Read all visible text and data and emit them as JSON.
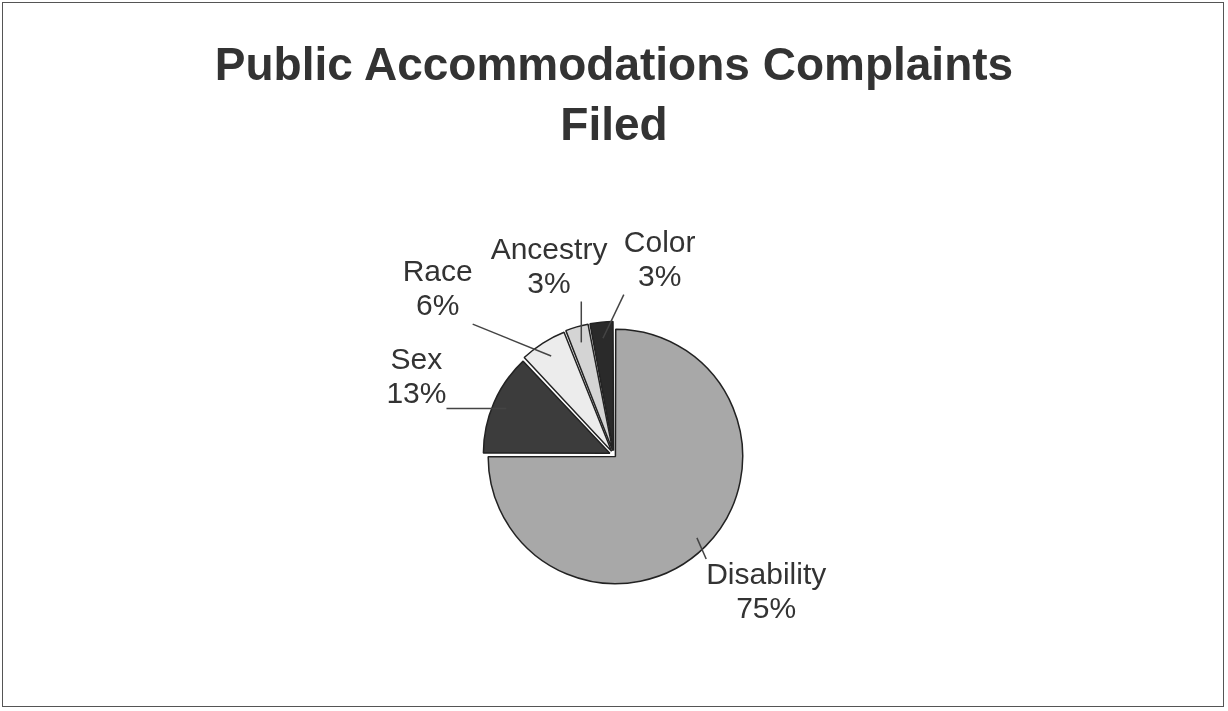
{
  "chart_data": {
    "type": "pie",
    "title": "Public Accommodations Complaints Filed",
    "categories": [
      "Disability",
      "Sex",
      "Race",
      "Ancestry",
      "Color"
    ],
    "values": [
      75,
      13,
      6,
      3,
      3
    ],
    "value_labels": [
      "75%",
      "13%",
      "6%",
      "3%",
      "3%"
    ],
    "colors": [
      "#a8a8a8",
      "#3c3c3c",
      "#ececec",
      "#d4d4d4",
      "#2a2a2a"
    ],
    "legend": false
  }
}
